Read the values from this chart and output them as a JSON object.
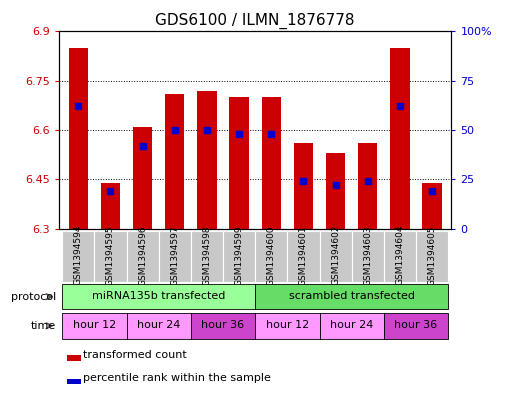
{
  "title": "GDS6100 / ILMN_1876778",
  "samples": [
    "GSM1394594",
    "GSM1394595",
    "GSM1394596",
    "GSM1394597",
    "GSM1394598",
    "GSM1394599",
    "GSM1394600",
    "GSM1394601",
    "GSM1394602",
    "GSM1394603",
    "GSM1394604",
    "GSM1394605"
  ],
  "bar_values": [
    6.85,
    6.44,
    6.61,
    6.71,
    6.72,
    6.7,
    6.7,
    6.56,
    6.53,
    6.56,
    6.85,
    6.44
  ],
  "percentile_values": [
    62,
    19,
    42,
    50,
    50,
    48,
    48,
    24,
    22,
    24,
    62,
    19
  ],
  "y_min": 6.3,
  "y_max": 6.9,
  "y_ticks": [
    6.3,
    6.45,
    6.6,
    6.75,
    6.9
  ],
  "y_tick_labels": [
    "6.3",
    "6.45",
    "6.6",
    "6.75",
    "6.9"
  ],
  "right_y_ticks": [
    0,
    25,
    50,
    75,
    100
  ],
  "right_y_tick_labels": [
    "0",
    "25",
    "50",
    "75",
    "100%"
  ],
  "bar_color": "#cc0000",
  "percentile_color": "#0000cc",
  "bar_width": 0.6,
  "protocol_groups": [
    {
      "label": "miRNA135b transfected",
      "start": 0,
      "end": 5,
      "color": "#99ff99"
    },
    {
      "label": "scrambled transfected",
      "start": 6,
      "end": 11,
      "color": "#66dd66"
    }
  ],
  "time_groups": [
    {
      "label": "hour 12",
      "start": 0,
      "end": 1,
      "color": "#ff99ff"
    },
    {
      "label": "hour 24",
      "start": 2,
      "end": 3,
      "color": "#ff99ff"
    },
    {
      "label": "hour 36",
      "start": 4,
      "end": 5,
      "color": "#cc44cc"
    },
    {
      "label": "hour 12",
      "start": 6,
      "end": 7,
      "color": "#ff99ff"
    },
    {
      "label": "hour 24",
      "start": 8,
      "end": 9,
      "color": "#ff99ff"
    },
    {
      "label": "hour 36",
      "start": 10,
      "end": 11,
      "color": "#cc44cc"
    }
  ],
  "legend_items": [
    {
      "label": "transformed count",
      "color": "#cc0000"
    },
    {
      "label": "percentile rank within the sample",
      "color": "#0000cc"
    }
  ],
  "bg_color": "#ffffff",
  "left_axis_color": "#cc0000",
  "right_axis_color": "#0000cc",
  "sample_bg_color": "#c8c8c8",
  "left_label_color": "#555555"
}
